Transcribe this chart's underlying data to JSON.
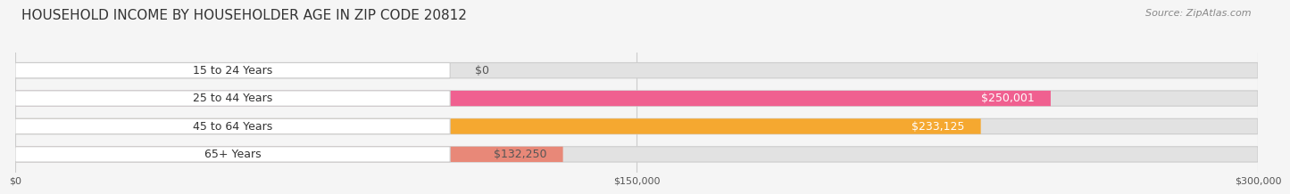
{
  "title": "HOUSEHOLD INCOME BY HOUSEHOLDER AGE IN ZIP CODE 20812",
  "source": "Source: ZipAtlas.com",
  "categories": [
    "15 to 24 Years",
    "25 to 44 Years",
    "45 to 64 Years",
    "65+ Years"
  ],
  "values": [
    0,
    250001,
    233125,
    132250
  ],
  "bar_colors": [
    "#a8a8d8",
    "#f06090",
    "#f5a830",
    "#e88878"
  ],
  "label_colors": [
    "#555555",
    "#ffffff",
    "#ffffff",
    "#555555"
  ],
  "max_value": 300000,
  "x_ticks": [
    0,
    150000,
    300000
  ],
  "x_tick_labels": [
    "$0",
    "$150,000",
    "$300,000"
  ],
  "value_labels": [
    "$0",
    "$250,001",
    "$233,125",
    "$132,250"
  ],
  "background_color": "#f5f5f5",
  "bar_background_color": "#e2e2e2",
  "title_fontsize": 11,
  "source_fontsize": 8,
  "label_fontsize": 9,
  "value_fontsize": 9,
  "tick_fontsize": 8
}
